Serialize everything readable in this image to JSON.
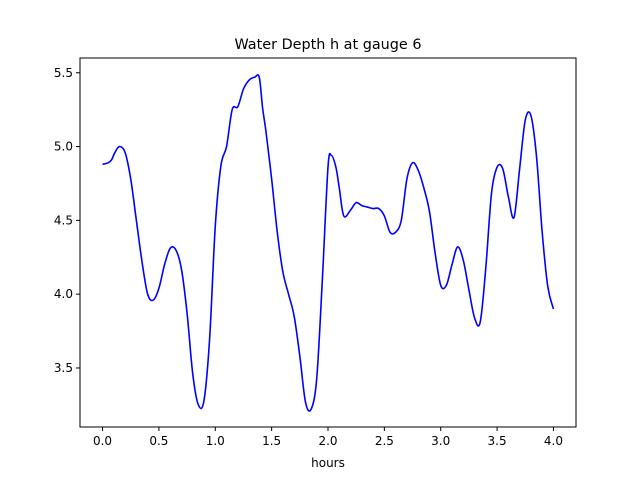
{
  "chart_data": {
    "type": "line",
    "title": "Water Depth h at gauge 6",
    "xlabel": "hours",
    "ylabel": "",
    "xlim": [
      -0.2,
      4.2
    ],
    "ylim": [
      3.1,
      5.6
    ],
    "xticks": [
      0.0,
      0.5,
      1.0,
      1.5,
      2.0,
      2.5,
      3.0,
      3.5,
      4.0
    ],
    "xtick_labels": [
      "0.0",
      "0.5",
      "1.0",
      "1.5",
      "2.0",
      "2.5",
      "3.0",
      "3.5",
      "4.0"
    ],
    "yticks": [
      3.5,
      4.0,
      4.5,
      5.0,
      5.5
    ],
    "ytick_labels": [
      "3.5",
      "4.0",
      "4.5",
      "5.0",
      "5.5"
    ],
    "grid": false,
    "series": [
      {
        "color": "#0000ff",
        "x": [
          0.0,
          0.05,
          0.08,
          0.11,
          0.15,
          0.2,
          0.25,
          0.3,
          0.35,
          0.4,
          0.45,
          0.5,
          0.55,
          0.6,
          0.65,
          0.7,
          0.75,
          0.8,
          0.85,
          0.9,
          0.95,
          1.0,
          1.05,
          1.1,
          1.15,
          1.2,
          1.25,
          1.3,
          1.35,
          1.39,
          1.42,
          1.45,
          1.5,
          1.55,
          1.6,
          1.65,
          1.7,
          1.75,
          1.8,
          1.85,
          1.9,
          1.95,
          2.0,
          2.03,
          2.07,
          2.1,
          2.14,
          2.2,
          2.25,
          2.3,
          2.35,
          2.4,
          2.45,
          2.5,
          2.55,
          2.6,
          2.65,
          2.7,
          2.75,
          2.8,
          2.85,
          2.9,
          2.95,
          3.0,
          3.05,
          3.1,
          3.15,
          3.2,
          3.25,
          3.3,
          3.35,
          3.4,
          3.45,
          3.5,
          3.55,
          3.6,
          3.65,
          3.7,
          3.75,
          3.8,
          3.85,
          3.9,
          3.95,
          4.0
        ],
        "y": [
          4.88,
          4.89,
          4.91,
          4.96,
          5.0,
          4.96,
          4.78,
          4.5,
          4.22,
          4.0,
          3.96,
          4.04,
          4.2,
          4.31,
          4.3,
          4.17,
          3.87,
          3.46,
          3.25,
          3.28,
          3.7,
          4.46,
          4.87,
          5.0,
          5.25,
          5.27,
          5.39,
          5.45,
          5.47,
          5.47,
          5.26,
          5.1,
          4.78,
          4.42,
          4.15,
          4.0,
          3.85,
          3.58,
          3.27,
          3.22,
          3.43,
          4.1,
          4.86,
          4.94,
          4.86,
          4.72,
          4.53,
          4.57,
          4.62,
          4.6,
          4.59,
          4.58,
          4.58,
          4.53,
          4.42,
          4.42,
          4.5,
          4.78,
          4.89,
          4.84,
          4.72,
          4.56,
          4.28,
          4.06,
          4.06,
          4.2,
          4.32,
          4.23,
          4.03,
          3.84,
          3.81,
          4.18,
          4.68,
          4.86,
          4.85,
          4.66,
          4.52,
          4.85,
          5.18,
          5.21,
          4.93,
          4.42,
          4.05,
          3.9
        ]
      }
    ]
  }
}
